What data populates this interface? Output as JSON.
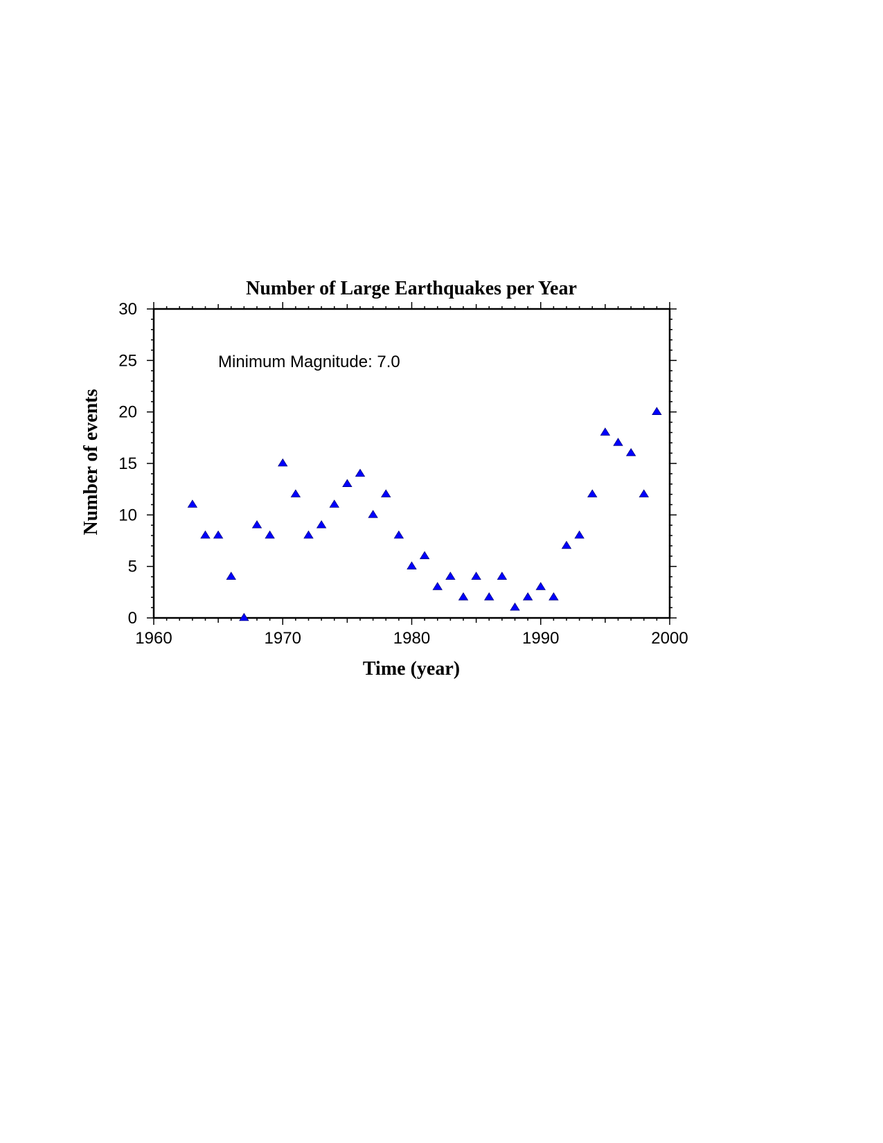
{
  "chart_data": {
    "type": "scatter",
    "title": "Number of Large Earthquakes per Year",
    "xlabel": "Time (year)",
    "ylabel": "Number of events",
    "annotation": "Minimum Magnitude: 7.0",
    "xlim": [
      1960,
      2000
    ],
    "ylim": [
      0,
      30
    ],
    "x_ticks": [
      "1960",
      "1970",
      "1980",
      "1990",
      "2000"
    ],
    "y_ticks": [
      "0",
      "5",
      "10",
      "15",
      "20",
      "25",
      "30"
    ],
    "marker": "triangle",
    "marker_color": "#0000ff",
    "grid": false,
    "series": [
      {
        "x": [
          1963,
          1964,
          1965,
          1966,
          1967,
          1968,
          1969,
          1970,
          1971,
          1972,
          1973,
          1974,
          1975,
          1976,
          1977,
          1978,
          1979,
          1980,
          1981,
          1982,
          1983,
          1984,
          1985,
          1986,
          1987,
          1988,
          1989,
          1990,
          1991,
          1992,
          1993,
          1994,
          1995,
          1996,
          1997,
          1998,
          1999
        ],
        "y": [
          11,
          8,
          8,
          4,
          0,
          9,
          8,
          15,
          12,
          8,
          9,
          11,
          13,
          14,
          10,
          12,
          8,
          5,
          6,
          3,
          4,
          2,
          4,
          2,
          4,
          1,
          2,
          3,
          2,
          7,
          8,
          12,
          18,
          17,
          16,
          12,
          20
        ]
      }
    ]
  }
}
